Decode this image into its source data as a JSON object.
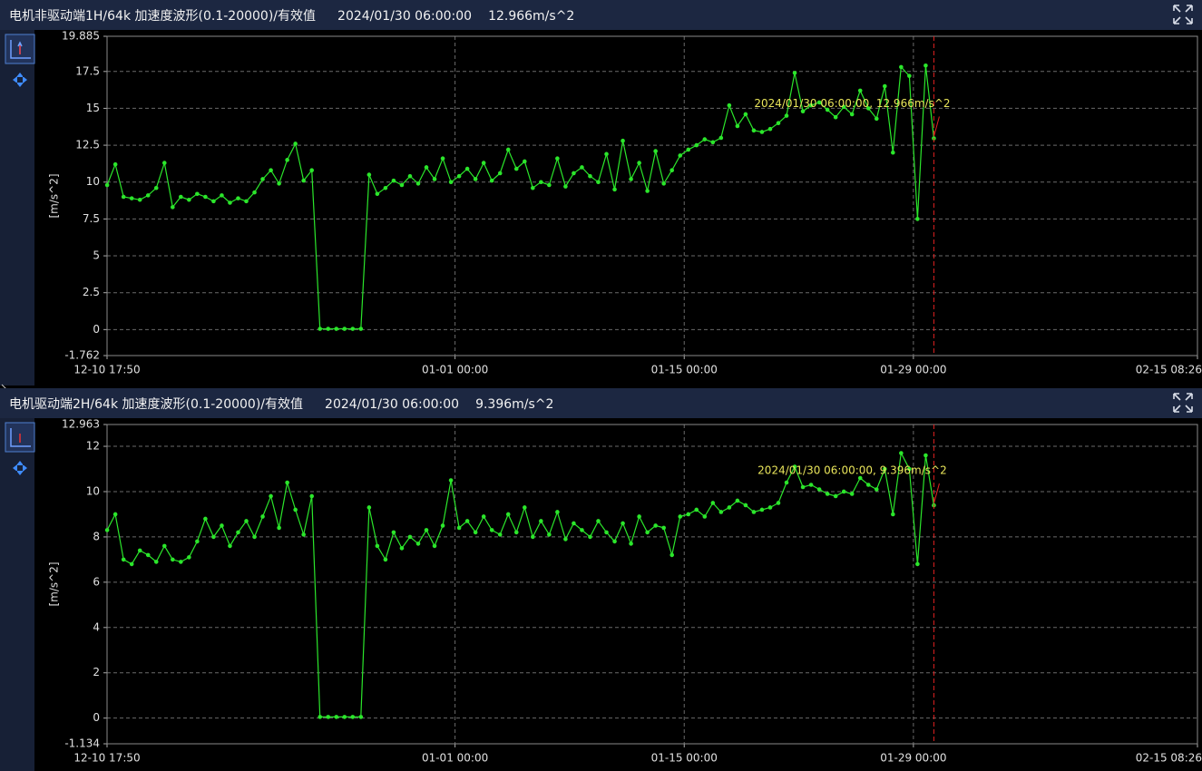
{
  "chart_data": [
    {
      "type": "line",
      "title": "电机非驱动端1H/64k 加速度波形(0.1-20000)/有效值",
      "timestamp": "2024/01/30 06:00:00",
      "reading": "12.966m/s^2",
      "ylabel": "[m/s^2]",
      "annotation": "2024/01/30 06:00:00, 12.966m/s^2",
      "cursor": "01-30 06:00",
      "color": "#2be62b",
      "grid": true,
      "xlim": [
        "12-10 17:50",
        "02-15 08:26"
      ],
      "xticks": [
        "12-10 17:50",
        "01-01 00:00",
        "01-15 00:00",
        "01-29 00:00",
        "02-15 08:26"
      ],
      "ylim": [
        -1.762,
        19.885
      ],
      "yticks": [
        -1.762,
        0,
        2.5,
        5,
        7.5,
        10,
        12.5,
        15,
        17.5,
        19.885
      ],
      "x": [
        "12-10 18:00",
        "12-11 06:00",
        "12-11 18:00",
        "12-12 06:00",
        "12-12 18:00",
        "12-13 06:00",
        "12-13 18:00",
        "12-14 06:00",
        "12-14 18:00",
        "12-15 06:00",
        "12-15 18:00",
        "12-16 06:00",
        "12-16 18:00",
        "12-17 06:00",
        "12-17 18:00",
        "12-18 06:00",
        "12-18 18:00",
        "12-19 06:00",
        "12-19 18:00",
        "12-20 06:00",
        "12-20 18:00",
        "12-21 06:00",
        "12-21 18:00",
        "12-22 06:00",
        "12-22 18:00",
        "12-23 06:00",
        "12-23 18:00",
        "12-24 06:00",
        "12-24 18:00",
        "12-25 06:00",
        "12-25 18:00",
        "12-26 06:00",
        "12-26 18:00",
        "12-27 06:00",
        "12-27 18:00",
        "12-28 06:00",
        "12-28 18:00",
        "12-29 06:00",
        "12-29 18:00",
        "12-30 06:00",
        "12-30 18:00",
        "12-31 06:00",
        "12-31 18:00",
        "01-01 06:00",
        "01-01 18:00",
        "01-02 06:00",
        "01-02 18:00",
        "01-03 06:00",
        "01-03 18:00",
        "01-04 06:00",
        "01-04 18:00",
        "01-05 06:00",
        "01-05 18:00",
        "01-06 06:00",
        "01-06 18:00",
        "01-07 06:00",
        "01-07 18:00",
        "01-08 06:00",
        "01-08 18:00",
        "01-09 06:00",
        "01-09 18:00",
        "01-10 06:00",
        "01-10 18:00",
        "01-11 06:00",
        "01-11 18:00",
        "01-12 06:00",
        "01-12 18:00",
        "01-13 06:00",
        "01-13 18:00",
        "01-14 06:00",
        "01-14 18:00",
        "01-15 06:00",
        "01-15 18:00",
        "01-16 06:00",
        "01-16 18:00",
        "01-17 06:00",
        "01-17 18:00",
        "01-18 06:00",
        "01-18 18:00",
        "01-19 06:00",
        "01-19 18:00",
        "01-20 06:00",
        "01-20 18:00",
        "01-21 06:00",
        "01-21 18:00",
        "01-22 06:00",
        "01-22 18:00",
        "01-23 06:00",
        "01-23 18:00",
        "01-24 06:00",
        "01-24 18:00",
        "01-25 06:00",
        "01-25 18:00",
        "01-26 06:00",
        "01-26 18:00",
        "01-27 06:00",
        "01-27 18:00",
        "01-28 06:00",
        "01-28 18:00",
        "01-29 06:00",
        "01-29 18:00",
        "01-30 06:00"
      ],
      "values": [
        9.8,
        11.2,
        9.0,
        8.9,
        8.8,
        9.1,
        9.6,
        11.3,
        8.3,
        9.0,
        8.8,
        9.2,
        9.0,
        8.7,
        9.1,
        8.6,
        8.9,
        8.7,
        9.3,
        10.2,
        10.8,
        9.9,
        11.5,
        12.6,
        10.1,
        10.8,
        0.05,
        0.05,
        0.05,
        0.05,
        0.05,
        0.05,
        10.5,
        9.2,
        9.6,
        10.1,
        9.8,
        10.4,
        9.9,
        11.0,
        10.2,
        11.6,
        10.0,
        10.4,
        10.9,
        10.2,
        11.3,
        10.1,
        10.6,
        12.2,
        10.9,
        11.4,
        9.6,
        10.0,
        9.8,
        11.6,
        9.7,
        10.6,
        11.0,
        10.4,
        10.0,
        11.9,
        9.5,
        12.8,
        10.2,
        11.3,
        9.4,
        12.1,
        9.9,
        10.8,
        11.8,
        12.2,
        12.5,
        12.9,
        12.7,
        13.0,
        15.2,
        13.8,
        14.6,
        13.5,
        13.4,
        13.6,
        14.0,
        14.5,
        17.4,
        14.8,
        15.2,
        15.4,
        14.9,
        14.4,
        15.1,
        14.6,
        16.2,
        15.0,
        14.3,
        16.5,
        12.0,
        17.8,
        17.2,
        7.5,
        17.9,
        12.966
      ]
    },
    {
      "type": "line",
      "title": "电机驱动端2H/64k 加速度波形(0.1-20000)/有效值",
      "timestamp": "2024/01/30 06:00:00",
      "reading": "9.396m/s^2",
      "ylabel": "[m/s^2]",
      "annotation": "2024/01/30 06:00:00, 9.396m/s^2",
      "cursor": "01-30 06:00",
      "color": "#2be62b",
      "grid": true,
      "xlim": [
        "12-10 17:50",
        "02-15 08:26"
      ],
      "xticks": [
        "12-10 17:50",
        "01-01 00:00",
        "01-15 00:00",
        "01-29 00:00",
        "02-15 08:26"
      ],
      "ylim": [
        -1.134,
        12.963
      ],
      "yticks": [
        -1.134,
        0,
        2,
        4,
        6,
        8,
        10,
        12,
        12.963
      ],
      "x": [
        "12-10 18:00",
        "12-11 06:00",
        "12-11 18:00",
        "12-12 06:00",
        "12-12 18:00",
        "12-13 06:00",
        "12-13 18:00",
        "12-14 06:00",
        "12-14 18:00",
        "12-15 06:00",
        "12-15 18:00",
        "12-16 06:00",
        "12-16 18:00",
        "12-17 06:00",
        "12-17 18:00",
        "12-18 06:00",
        "12-18 18:00",
        "12-19 06:00",
        "12-19 18:00",
        "12-20 06:00",
        "12-20 18:00",
        "12-21 06:00",
        "12-21 18:00",
        "12-22 06:00",
        "12-22 18:00",
        "12-23 06:00",
        "12-23 18:00",
        "12-24 06:00",
        "12-24 18:00",
        "12-25 06:00",
        "12-25 18:00",
        "12-26 06:00",
        "12-26 18:00",
        "12-27 06:00",
        "12-27 18:00",
        "12-28 06:00",
        "12-28 18:00",
        "12-29 06:00",
        "12-29 18:00",
        "12-30 06:00",
        "12-30 18:00",
        "12-31 06:00",
        "12-31 18:00",
        "01-01 06:00",
        "01-01 18:00",
        "01-02 06:00",
        "01-02 18:00",
        "01-03 06:00",
        "01-03 18:00",
        "01-04 06:00",
        "01-04 18:00",
        "01-05 06:00",
        "01-05 18:00",
        "01-06 06:00",
        "01-06 18:00",
        "01-07 06:00",
        "01-07 18:00",
        "01-08 06:00",
        "01-08 18:00",
        "01-09 06:00",
        "01-09 18:00",
        "01-10 06:00",
        "01-10 18:00",
        "01-11 06:00",
        "01-11 18:00",
        "01-12 06:00",
        "01-12 18:00",
        "01-13 06:00",
        "01-13 18:00",
        "01-14 06:00",
        "01-14 18:00",
        "01-15 06:00",
        "01-15 18:00",
        "01-16 06:00",
        "01-16 18:00",
        "01-17 06:00",
        "01-17 18:00",
        "01-18 06:00",
        "01-18 18:00",
        "01-19 06:00",
        "01-19 18:00",
        "01-20 06:00",
        "01-20 18:00",
        "01-21 06:00",
        "01-21 18:00",
        "01-22 06:00",
        "01-22 18:00",
        "01-23 06:00",
        "01-23 18:00",
        "01-24 06:00",
        "01-24 18:00",
        "01-25 06:00",
        "01-25 18:00",
        "01-26 06:00",
        "01-26 18:00",
        "01-27 06:00",
        "01-27 18:00",
        "01-28 06:00",
        "01-28 18:00",
        "01-29 06:00",
        "01-29 18:00",
        "01-30 06:00"
      ],
      "values": [
        8.3,
        9.0,
        7.0,
        6.8,
        7.4,
        7.2,
        6.9,
        7.6,
        7.0,
        6.9,
        7.1,
        7.8,
        8.8,
        8.0,
        8.5,
        7.6,
        8.2,
        8.7,
        8.0,
        8.9,
        9.8,
        8.4,
        10.4,
        9.2,
        8.1,
        9.8,
        0.05,
        0.05,
        0.05,
        0.05,
        0.05,
        0.05,
        9.3,
        7.6,
        7.0,
        8.2,
        7.5,
        8.0,
        7.7,
        8.3,
        7.6,
        8.5,
        10.5,
        8.4,
        8.7,
        8.2,
        8.9,
        8.3,
        8.1,
        9.0,
        8.2,
        9.3,
        8.0,
        8.7,
        8.1,
        9.1,
        7.9,
        8.6,
        8.3,
        8.0,
        8.7,
        8.2,
        7.8,
        8.6,
        7.7,
        8.9,
        8.2,
        8.5,
        8.4,
        7.2,
        8.9,
        9.0,
        9.2,
        8.9,
        9.5,
        9.1,
        9.3,
        9.6,
        9.4,
        9.1,
        9.2,
        9.3,
        9.5,
        10.4,
        11.1,
        10.2,
        10.3,
        10.1,
        9.9,
        9.8,
        10.0,
        9.9,
        10.6,
        10.3,
        10.1,
        11.0,
        9.0,
        11.7,
        11.0,
        6.8,
        11.6,
        9.396
      ]
    }
  ]
}
